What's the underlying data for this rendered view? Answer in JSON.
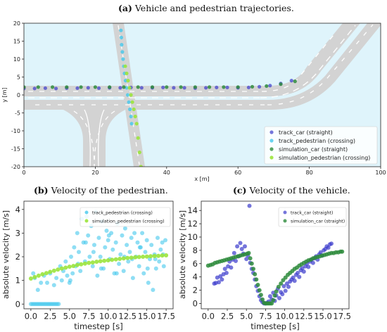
{
  "captions": {
    "a": {
      "tag": "(a)",
      "text": "Vehicle and pedestrian trajectories."
    },
    "b": {
      "tag": "(b)",
      "text": "Velocity of the pedestrian."
    },
    "c": {
      "tag": "(c)",
      "text": "Velocity of the vehicle."
    }
  },
  "colors": {
    "background_water": "#dff4fb",
    "road": "#d3d3d3",
    "lane_marking": "#ffffff",
    "track_car": "#3a3acc",
    "track_pedestrian": "#44c8ec",
    "simulation_car": "#2e8b3c",
    "simulation_pedestrian": "#9be43c"
  },
  "chart_data": [
    {
      "id": "a",
      "type": "scatter",
      "title": "(a) Vehicle and pedestrian trajectories.",
      "xlabel": "x [m]",
      "ylabel": "y [m]",
      "xlim": [
        0,
        100
      ],
      "ylim": [
        -20,
        20
      ],
      "xticks": [
        0,
        20,
        40,
        60,
        80,
        100
      ],
      "yticks": [
        -20,
        -15,
        -10,
        -5,
        0,
        5,
        10,
        15,
        20
      ],
      "grid": false,
      "legend_position": "bottom-right",
      "series": [
        {
          "name": "track_car (straight)",
          "color": "#3a3acc",
          "x": [
            0,
            3,
            6,
            9,
            12,
            15,
            18,
            21,
            24,
            27,
            30,
            33,
            36,
            39,
            42,
            45,
            48,
            51,
            54,
            57,
            60,
            63,
            66,
            69,
            72,
            75
          ],
          "y": [
            1.8,
            1.8,
            1.9,
            1.8,
            1.9,
            1.9,
            2.0,
            1.9,
            2.0,
            2.0,
            2.1,
            2.0,
            2.0,
            2.1,
            2.0,
            2.0,
            1.9,
            2.0,
            2.1,
            2.1,
            2.0,
            2.1,
            2.3,
            2.6,
            3.2,
            4.0
          ]
        },
        {
          "name": "track_pedestrian (crossing)",
          "color": "#44c8ec",
          "x": [
            27.2,
            27.3,
            27.4,
            27.6,
            27.8,
            28.0,
            28.2,
            28.5,
            28.8,
            29.1,
            29.4,
            29.7,
            30.0,
            30.2
          ],
          "y": [
            18,
            16,
            14,
            12,
            10,
            8,
            6,
            4,
            2,
            0,
            -2,
            -4,
            -6,
            -8
          ]
        },
        {
          "name": "simulation_car (straight)",
          "color": "#2e8b3c",
          "x": [
            0,
            4,
            8,
            12,
            16,
            20,
            24,
            28,
            32,
            36,
            40,
            44,
            48,
            52,
            56,
            60,
            64,
            68,
            72,
            76
          ],
          "y": [
            2.2,
            2.2,
            2.2,
            2.2,
            2.2,
            2.2,
            2.2,
            2.2,
            2.2,
            2.2,
            2.2,
            2.2,
            2.2,
            2.2,
            2.2,
            2.2,
            2.3,
            2.5,
            3.0,
            3.8
          ]
        },
        {
          "name": "simulation_pedestrian (crossing)",
          "color": "#9be43c",
          "x": [
            28.4,
            28.8,
            29.2,
            29.6,
            30.0,
            30.4,
            30.8,
            31.2,
            31.6,
            32.0,
            32.4,
            32.8
          ],
          "y": [
            8,
            6,
            4,
            2,
            0,
            -2,
            -4,
            -6,
            -8,
            -12,
            -16,
            -20
          ]
        }
      ]
    },
    {
      "id": "b",
      "type": "scatter",
      "title": "(b) Velocity of the pedestrian.",
      "xlabel": "timestep [s]",
      "ylabel": "absolute velocity [m/s]",
      "xlim": [
        -0.9,
        18.4
      ],
      "ylim": [
        -0.2,
        4.35
      ],
      "xticks": [
        0.0,
        2.5,
        5.0,
        7.5,
        10.0,
        12.5,
        15.0,
        17.5
      ],
      "xticklabels": [
        "0.0",
        "2.5",
        "5.0",
        "7.5",
        "10.0",
        "12.5",
        "15.0",
        "17.5"
      ],
      "yticks": [
        0,
        1,
        2,
        3,
        4
      ],
      "grid": false,
      "legend_position": "top-right",
      "series": [
        {
          "name": "track_pedestrian (crossing)",
          "color": "#44c8ec",
          "x": [
            0.0,
            0.2,
            0.4,
            0.6,
            0.8,
            1.0,
            1.2,
            1.4,
            1.6,
            1.8,
            2.0,
            2.2,
            2.4,
            2.6,
            2.8,
            3.0,
            3.2,
            3.4,
            3.6,
            0.3,
            0.5,
            0.9,
            1.3,
            1.7,
            2.1,
            2.5,
            3.0,
            3.3,
            3.8,
            4.0,
            4.2,
            4.5,
            4.7,
            5.0,
            5.2,
            5.4,
            5.6,
            5.8,
            6.0,
            6.2,
            6.4,
            6.6,
            6.8,
            7.0,
            7.2,
            7.4,
            7.6,
            7.8,
            8.0,
            8.2,
            8.4,
            8.6,
            8.8,
            9.0,
            9.2,
            9.4,
            9.6,
            9.8,
            10.0,
            10.2,
            10.4,
            10.6,
            10.8,
            11.0,
            11.2,
            11.4,
            11.6,
            11.8,
            12.0,
            12.2,
            12.4,
            12.6,
            12.8,
            13.0,
            13.2,
            13.4,
            13.6,
            13.8,
            14.0,
            14.2,
            14.4,
            14.6,
            14.8,
            15.0,
            15.2,
            15.4,
            15.6,
            15.8,
            16.0,
            16.2,
            16.4,
            16.6,
            16.8,
            17.0,
            17.2,
            17.4,
            5.1,
            6.1,
            7.1,
            8.1,
            9.1,
            10.1,
            11.1,
            12.1,
            13.1,
            14.1,
            15.1,
            16.1,
            17.1
          ],
          "y": [
            0,
            0,
            0,
            0,
            0,
            0,
            0,
            0,
            0,
            0,
            0,
            0,
            0,
            0,
            0,
            0,
            0,
            0,
            0,
            1.3,
            1.1,
            0.6,
            0.9,
            1.2,
            0.9,
            1.3,
            0.8,
            1.1,
            1.6,
            1.0,
            1.4,
            1.8,
            1.2,
            0.9,
            2.0,
            1.3,
            2.4,
            1.6,
            3.0,
            2.2,
            1.4,
            3.6,
            2.6,
            1.8,
            3.7,
            2.9,
            2.0,
            3.3,
            1.6,
            2.5,
            3.9,
            1.2,
            2.8,
            2.0,
            3.5,
            1.5,
            2.4,
            3.1,
            2.7,
            1.9,
            3.0,
            2.3,
            1.3,
            2.6,
            3.4,
            1.7,
            2.1,
            2.9,
            1.4,
            3.2,
            2.5,
            1.8,
            2.2,
            2.8,
            1.1,
            3.0,
            2.0,
            2.6,
            1.6,
            2.4,
            3.0,
            1.3,
            2.2,
            2.7,
            0.9,
            1.9,
            2.5,
            0.6,
            2.1,
            1.5,
            2.8,
            1.8,
            2.3,
            2.6,
            1.6,
            2.7,
            1.0,
            1.7,
            2.6,
            2.2,
            1.5,
            2.9,
            1.3,
            2.0,
            1.9,
            2.4,
            1.5,
            1.9,
            2.1
          ]
        },
        {
          "name": "simulation_pedestrian (crossing)",
          "color": "#9be43c",
          "x": [
            0.0,
            0.5,
            1.0,
            1.5,
            2.0,
            2.5,
            3.0,
            3.5,
            4.0,
            4.5,
            5.0,
            5.5,
            6.0,
            6.5,
            7.0,
            7.5,
            8.0,
            8.5,
            9.0,
            9.5,
            10.0,
            10.5,
            11.0,
            11.5,
            12.0,
            12.5,
            13.0,
            13.5,
            14.0,
            14.5,
            15.0,
            15.5,
            16.0,
            16.5,
            17.0,
            17.5
          ],
          "y": [
            1.08,
            1.14,
            1.2,
            1.26,
            1.31,
            1.36,
            1.41,
            1.46,
            1.5,
            1.54,
            1.58,
            1.61,
            1.65,
            1.68,
            1.71,
            1.74,
            1.76,
            1.79,
            1.81,
            1.83,
            1.85,
            1.87,
            1.89,
            1.91,
            1.93,
            1.95,
            1.96,
            1.98,
            1.99,
            2.0,
            2.01,
            2.02,
            2.03,
            2.04,
            2.05,
            2.06
          ]
        }
      ]
    },
    {
      "id": "c",
      "type": "scatter",
      "title": "(c) Velocity of the vehicle.",
      "xlabel": "timestep [s]",
      "ylabel": "absolute velocity [m/s]",
      "xlim": [
        -0.9,
        18.4
      ],
      "ylim": [
        -0.8,
        15.4
      ],
      "xticks": [
        0.0,
        2.5,
        5.0,
        7.5,
        10.0,
        12.5,
        15.0,
        17.5
      ],
      "xticklabels": [
        "0.0",
        "2.5",
        "5.0",
        "7.5",
        "10.0",
        "12.5",
        "15.0",
        "17.5"
      ],
      "yticks": [
        0,
        2,
        4,
        6,
        8,
        10,
        12,
        14
      ],
      "grid": false,
      "legend_position": "top-right",
      "series": [
        {
          "name": "track_car (straight)",
          "color": "#3a3acc",
          "x": [
            0.8,
            1.0,
            1.2,
            1.4,
            1.6,
            1.8,
            2.0,
            2.2,
            2.4,
            2.6,
            2.8,
            3.0,
            3.2,
            3.4,
            3.6,
            3.8,
            4.0,
            4.2,
            4.4,
            4.6,
            4.8,
            5.0,
            5.2,
            5.4,
            5.5,
            5.7,
            5.9,
            6.1,
            6.3,
            6.5,
            6.7,
            6.9,
            7.1,
            7.3,
            7.5,
            7.7,
            7.9,
            8.1,
            8.3,
            8.5,
            8.7,
            8.9,
            9.1,
            9.3,
            9.5,
            9.7,
            9.9,
            10.1,
            10.3,
            10.5,
            10.7,
            10.9,
            11.1,
            11.3,
            11.5,
            11.7,
            11.9,
            12.1,
            12.3,
            12.5,
            12.7,
            12.9,
            13.1,
            13.3,
            13.5,
            13.7,
            13.9,
            14.1,
            14.3,
            14.5,
            14.7,
            14.9,
            15.1,
            15.3,
            15.5,
            15.7,
            15.9,
            16.1
          ],
          "y": [
            3.0,
            3.1,
            3.9,
            3.2,
            4.1,
            3.6,
            4.4,
            5.2,
            4.6,
            5.6,
            6.3,
            5.4,
            6.6,
            7.6,
            6.4,
            8.6,
            7.1,
            9.1,
            8.2,
            7.5,
            8.6,
            6.7,
            7.2,
            14.7,
            6.1,
            5.2,
            4.6,
            3.6,
            2.6,
            1.9,
            1.1,
            0.5,
            0.2,
            0.0,
            0.0,
            0.1,
            0.3,
            1.1,
            0.6,
            1.6,
            0.4,
            1.2,
            2.2,
            0.8,
            1.7,
            1.4,
            2.6,
            1.9,
            3.0,
            2.5,
            3.3,
            3.6,
            3.9,
            3.4,
            4.3,
            4.6,
            4.0,
            5.0,
            5.3,
            4.8,
            5.6,
            6.0,
            5.5,
            6.3,
            6.6,
            6.1,
            6.8,
            7.1,
            6.6,
            7.4,
            7.7,
            7.2,
            8.0,
            8.2,
            8.6,
            8.4,
            8.9,
            9.0
          ]
        },
        {
          "name": "simulation_car (straight)",
          "color": "#2e8b3c",
          "x": [
            0.0,
            0.3,
            0.6,
            0.9,
            1.2,
            1.5,
            1.8,
            2.1,
            2.4,
            2.7,
            3.0,
            3.3,
            3.6,
            3.9,
            4.2,
            4.5,
            4.8,
            5.1,
            5.3,
            5.5,
            5.7,
            5.9,
            6.1,
            6.3,
            6.5,
            6.7,
            6.9,
            7.1,
            7.3,
            7.5,
            7.7,
            7.9,
            8.1,
            8.3,
            8.5,
            8.7,
            8.9,
            9.2,
            9.5,
            9.8,
            10.1,
            10.4,
            10.7,
            11.0,
            11.3,
            11.6,
            11.9,
            12.2,
            12.5,
            12.8,
            13.1,
            13.4,
            13.7,
            14.0,
            14.3,
            14.6,
            14.9,
            15.2,
            15.5,
            15.8,
            16.1,
            16.4,
            16.7,
            17.0,
            17.3,
            17.5
          ],
          "y": [
            5.7,
            5.8,
            5.9,
            6.1,
            6.2,
            6.3,
            6.4,
            6.5,
            6.6,
            6.7,
            6.8,
            6.9,
            7.0,
            7.1,
            7.2,
            7.3,
            7.4,
            7.5,
            7.6,
            6.8,
            6.0,
            5.2,
            4.4,
            3.6,
            2.8,
            2.0,
            1.3,
            0.6,
            0.1,
            0.0,
            0.0,
            0.0,
            0.0,
            0.0,
            0.5,
            1.2,
            1.8,
            2.5,
            3.0,
            3.5,
            3.9,
            4.3,
            4.6,
            4.9,
            5.2,
            5.4,
            5.7,
            5.9,
            6.1,
            6.3,
            6.5,
            6.6,
            6.8,
            6.9,
            7.0,
            7.1,
            7.2,
            7.3,
            7.4,
            7.5,
            7.6,
            7.6,
            7.7,
            7.7,
            7.8,
            7.8
          ]
        }
      ]
    }
  ]
}
